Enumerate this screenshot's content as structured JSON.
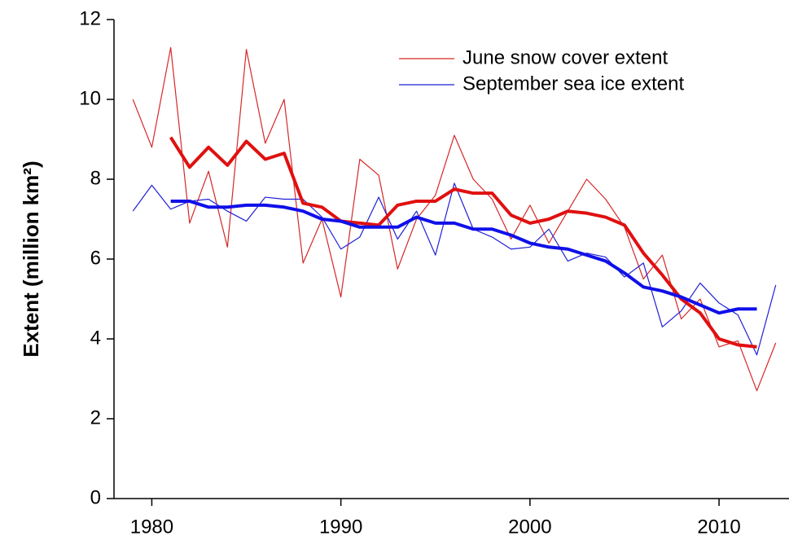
{
  "chart_data": {
    "type": "line",
    "y_label": "Extent  (million km²)",
    "x": [
      1979,
      1980,
      1981,
      1982,
      1983,
      1984,
      1985,
      1986,
      1987,
      1988,
      1989,
      1990,
      1991,
      1992,
      1993,
      1994,
      1995,
      1996,
      1997,
      1998,
      1999,
      2000,
      2001,
      2002,
      2003,
      2004,
      2005,
      2006,
      2007,
      2008,
      2009,
      2010,
      2011,
      2012,
      2013
    ],
    "series": [
      {
        "name": "June snow cover extent",
        "color": "#d62728",
        "width": 1.2,
        "values": [
          10.0,
          8.8,
          11.3,
          6.9,
          8.2,
          6.3,
          11.25,
          8.9,
          10.0,
          5.9,
          7.0,
          5.05,
          8.5,
          8.1,
          5.75,
          7.0,
          7.6,
          9.1,
          8.0,
          7.5,
          6.5,
          7.35,
          6.4,
          7.2,
          8.0,
          7.5,
          6.8,
          5.5,
          6.1,
          4.5,
          5.0,
          3.8,
          3.95,
          2.7,
          3.9
        ]
      },
      {
        "name": "September sea ice extent",
        "color": "#1f1fd6",
        "width": 1.2,
        "values": [
          7.2,
          7.85,
          7.25,
          7.45,
          7.5,
          7.2,
          6.95,
          7.55,
          7.5,
          7.5,
          7.05,
          6.25,
          6.55,
          7.55,
          6.5,
          7.2,
          6.1,
          7.9,
          6.75,
          6.55,
          6.25,
          6.3,
          6.75,
          5.95,
          6.15,
          6.05,
          5.55,
          5.9,
          4.3,
          4.7,
          5.4,
          4.9,
          4.6,
          3.6,
          5.35
        ]
      },
      {
        "color": "#e01010",
        "width": 4,
        "values": [
          null,
          null,
          9.05,
          8.3,
          8.8,
          8.35,
          8.95,
          8.5,
          8.65,
          7.4,
          7.3,
          6.95,
          6.9,
          6.85,
          7.35,
          7.45,
          7.45,
          7.75,
          7.65,
          7.65,
          7.1,
          6.9,
          7.0,
          7.2,
          7.15,
          7.05,
          6.85,
          6.15,
          5.6,
          5.0,
          4.65,
          4.0,
          3.85,
          3.8,
          null
        ]
      },
      {
        "color": "#1010e8",
        "width": 4,
        "values": [
          null,
          null,
          7.45,
          7.45,
          7.3,
          7.3,
          7.35,
          7.35,
          7.3,
          7.2,
          7.0,
          6.95,
          6.8,
          6.8,
          6.8,
          7.05,
          6.9,
          6.9,
          6.75,
          6.75,
          6.6,
          6.4,
          6.3,
          6.25,
          6.1,
          5.95,
          5.65,
          5.3,
          5.2,
          5.05,
          4.85,
          4.65,
          4.75,
          4.75,
          null
        ]
      }
    ],
    "xlim": [
      1978,
      2013.7
    ],
    "xticks": [
      1980,
      1990,
      2000,
      2010
    ],
    "ylim": [
      0,
      12
    ],
    "yticks": [
      0,
      2,
      4,
      6,
      8,
      10,
      12
    ],
    "grid": false,
    "legend": "upper right"
  }
}
